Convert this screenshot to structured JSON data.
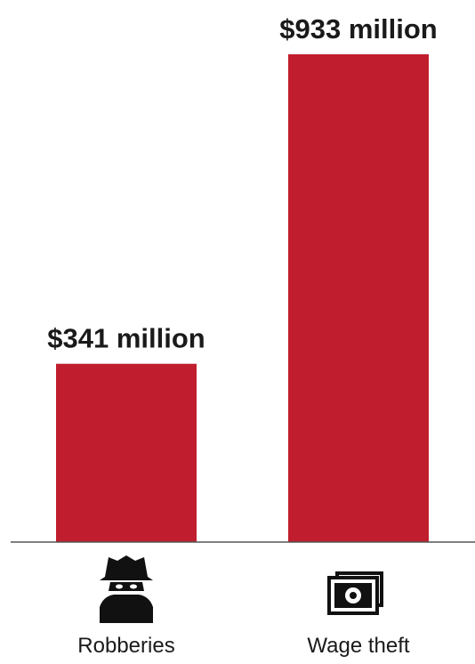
{
  "chart_data": {
    "type": "bar",
    "categories": [
      "Robberies",
      "Wage theft"
    ],
    "values": [
      341,
      933
    ],
    "value_labels": [
      "$341 million",
      "$933 million"
    ],
    "icons": [
      "burglar-icon",
      "banknote-stack-icon"
    ],
    "bar_color": "#c01e2e",
    "ylim": [
      0,
      933
    ],
    "grid": false,
    "title": "",
    "xlabel": "",
    "ylabel": ""
  }
}
